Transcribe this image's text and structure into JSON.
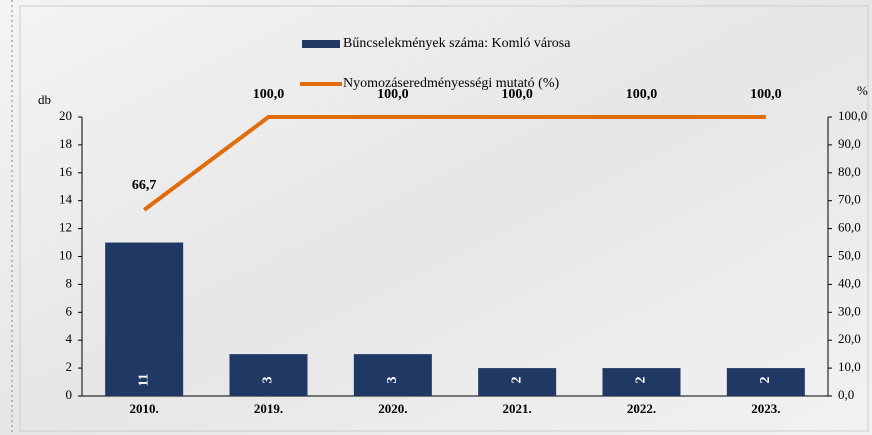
{
  "chart_data": {
    "type": "bar",
    "categories": [
      "2010.",
      "2019.",
      "2020.",
      "2021.",
      "2022.",
      "2023."
    ],
    "ylabel": "db",
    "y2label": "%",
    "ylim": [
      0,
      20
    ],
    "yticks": [
      0,
      2,
      4,
      6,
      8,
      10,
      12,
      14,
      16,
      18,
      20
    ],
    "y2lim": [
      0,
      100
    ],
    "y2ticks": [
      {
        "value": 0,
        "label": "0,0"
      },
      {
        "value": 10,
        "label": "10,0"
      },
      {
        "value": 20,
        "label": "20,0"
      },
      {
        "value": 30,
        "label": "30,0"
      },
      {
        "value": 40,
        "label": "40,0"
      },
      {
        "value": 50,
        "label": "50,0"
      },
      {
        "value": 60,
        "label": "60,0"
      },
      {
        "value": 70,
        "label": "70,0"
      },
      {
        "value": 80,
        "label": "80,0"
      },
      {
        "value": 90,
        "label": "90,0"
      },
      {
        "value": 100,
        "label": "100,0"
      }
    ],
    "series": [
      {
        "name": "Bűncselekmények száma: Komló városa",
        "type": "bar",
        "color": "#1f3864",
        "values": [
          11,
          3,
          3,
          2,
          2,
          2
        ]
      },
      {
        "name": "Nyomozáseredményességi mutató (%)",
        "type": "line",
        "axis": "y2",
        "color": "#e36c0a",
        "values": [
          66.7,
          100,
          100,
          100,
          100,
          100
        ],
        "value_labels": [
          "66,7",
          "100,0",
          "100,0",
          "100,0",
          "100,0",
          "100,0"
        ]
      }
    ]
  }
}
